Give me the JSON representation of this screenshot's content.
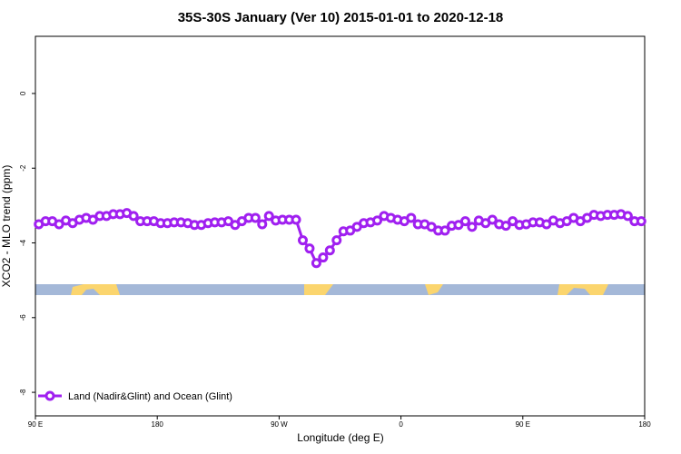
{
  "chart_data": {
    "type": "line",
    "title": "35S-30S January (Ver 10)   2015-01-01 to 2020-12-18",
    "xlabel": "Longitude (deg E)",
    "ylabel": "XCO2 - MLO trend (ppm)",
    "xlim": [
      90,
      540
    ],
    "ylim": [
      -8.63,
      1.53
    ],
    "xticks": [
      {
        "value": 90,
        "label": "90 E"
      },
      180,
      {
        "value": 270,
        "label": "90 W"
      },
      {
        "value": 360,
        "label": "0"
      },
      {
        "value": 450,
        "label": "90 E"
      },
      {
        "value": 540,
        "label": "180"
      }
    ],
    "yticks": [
      0,
      -2,
      -4,
      -6,
      -8
    ],
    "legend": "bottom-left",
    "x": [
      92.5,
      97.5,
      102.5,
      107.5,
      112.5,
      117.5,
      122.5,
      127.5,
      132.5,
      137.5,
      142.5,
      147.5,
      152.5,
      157.5,
      162.5,
      167.5,
      172.5,
      177.5,
      182.5,
      187.5,
      192.5,
      197.5,
      202.5,
      207.5,
      212.5,
      217.5,
      222.5,
      227.5,
      232.5,
      237.5,
      242.5,
      247.5,
      252.5,
      257.5,
      262.5,
      267.5,
      272.5,
      277.5,
      282.5,
      287.5,
      292.5,
      297.5,
      302.5,
      307.5,
      312.5,
      317.5,
      322.5,
      327.5,
      332.5,
      337.5,
      342.5,
      347.5,
      352.5,
      357.5,
      362.5,
      367.5,
      372.5,
      377.5,
      382.5,
      387.5,
      392.5,
      397.5,
      402.5,
      407.5,
      412.5,
      417.5,
      422.5,
      427.5,
      432.5,
      437.5,
      442.5,
      447.5,
      452.5,
      457.5,
      462.5,
      467.5,
      472.5,
      477.5,
      482.5,
      487.5,
      492.5,
      497.5,
      502.5,
      507.5,
      512.5,
      517.5,
      522.5,
      527.5,
      532.5,
      537.5
    ],
    "series": [
      {
        "name": "Land (Nadir&Glint) and Ocean (Glint)",
        "color": "#a020f0",
        "values": [
          -3.5,
          -3.42,
          -3.42,
          -3.5,
          -3.4,
          -3.47,
          -3.38,
          -3.33,
          -3.38,
          -3.28,
          -3.28,
          -3.23,
          -3.23,
          -3.2,
          -3.28,
          -3.42,
          -3.42,
          -3.42,
          -3.47,
          -3.47,
          -3.45,
          -3.45,
          -3.47,
          -3.52,
          -3.52,
          -3.47,
          -3.45,
          -3.45,
          -3.42,
          -3.52,
          -3.42,
          -3.33,
          -3.33,
          -3.5,
          -3.28,
          -3.4,
          -3.38,
          -3.38,
          -3.38,
          -3.93,
          -4.15,
          -4.54,
          -4.39,
          -4.2,
          -3.93,
          -3.69,
          -3.67,
          -3.57,
          -3.47,
          -3.45,
          -3.4,
          -3.28,
          -3.33,
          -3.38,
          -3.42,
          -3.33,
          -3.5,
          -3.5,
          -3.57,
          -3.67,
          -3.67,
          -3.54,
          -3.52,
          -3.42,
          -3.57,
          -3.4,
          -3.47,
          -3.38,
          -3.5,
          -3.54,
          -3.42,
          -3.52,
          -3.5,
          -3.45,
          -3.45,
          -3.5,
          -3.4,
          -3.47,
          -3.42,
          -3.33,
          -3.42,
          -3.33,
          -3.25,
          -3.28,
          -3.25,
          -3.25,
          -3.23,
          -3.28,
          -3.42,
          -3.42
        ]
      }
    ]
  }
}
